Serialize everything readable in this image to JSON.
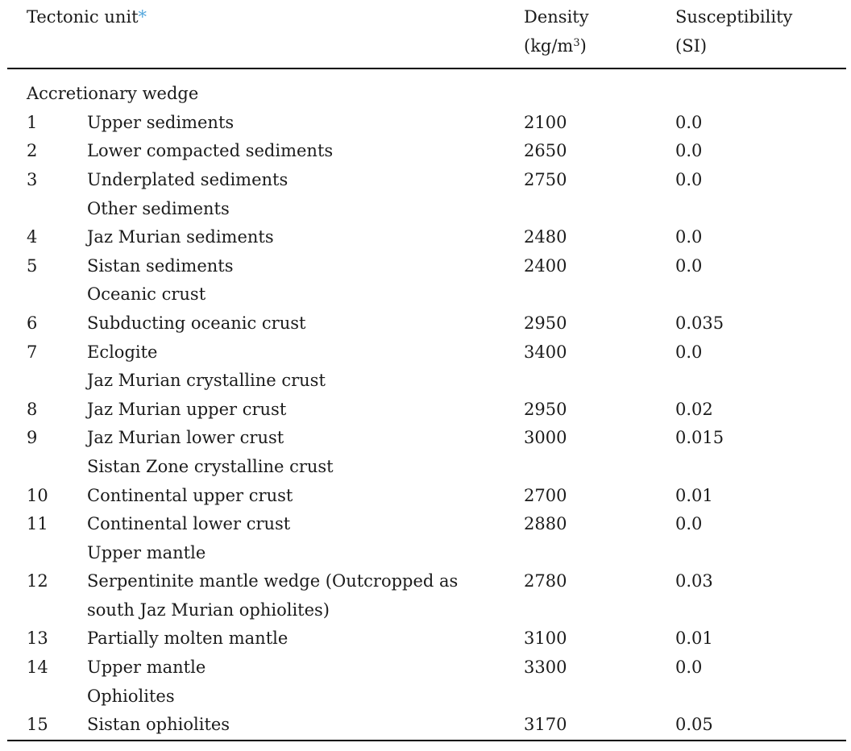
{
  "page": {
    "background": "#ffffff",
    "text_color": "#1b1b1b",
    "rule_color": "#000000",
    "footnote_link_color": "#54a7dc"
  },
  "header": {
    "tectonic_unit": "Tectonic unit",
    "tectonic_unit_note": "*",
    "density_label": "Density",
    "density_unit_prefix": "(kg/m",
    "density_unit_sup": "3",
    "density_unit_suffix": ")",
    "susceptibility_label": "Susceptibility",
    "susceptibility_unit": "(SI)"
  },
  "rows": [
    {
      "type": "group",
      "indent": false,
      "label": "Accretionary wedge"
    },
    {
      "type": "item",
      "num": "1",
      "name": "Upper sediments",
      "density": "2100",
      "susceptibility": "0.0"
    },
    {
      "type": "item",
      "num": "2",
      "name": "Lower compacted sediments",
      "density": "2650",
      "susceptibility": "0.0"
    },
    {
      "type": "item",
      "num": "3",
      "name": "Underplated sediments",
      "density": "2750",
      "susceptibility": "0.0"
    },
    {
      "type": "group",
      "indent": true,
      "label": "Other sediments"
    },
    {
      "type": "item",
      "num": "4",
      "name": "Jaz Murian sediments",
      "density": "2480",
      "susceptibility": "0.0"
    },
    {
      "type": "item",
      "num": "5",
      "name": "Sistan sediments",
      "density": "2400",
      "susceptibility": "0.0"
    },
    {
      "type": "group",
      "indent": true,
      "label": "Oceanic crust"
    },
    {
      "type": "item",
      "num": "6",
      "name": "Subducting oceanic crust",
      "density": "2950",
      "susceptibility": "0.035"
    },
    {
      "type": "item",
      "num": "7",
      "name": "Eclogite",
      "density": "3400",
      "susceptibility": "0.0"
    },
    {
      "type": "group",
      "indent": true,
      "label": "Jaz Murian crystalline crust"
    },
    {
      "type": "item",
      "num": "8",
      "name": "Jaz Murian upper crust",
      "density": "2950",
      "susceptibility": "0.02"
    },
    {
      "type": "item",
      "num": "9",
      "name": "Jaz Murian lower crust",
      "density": "3000",
      "susceptibility": "0.015"
    },
    {
      "type": "group",
      "indent": true,
      "label": "Sistan Zone crystalline crust"
    },
    {
      "type": "item",
      "num": "10",
      "name": "Continental upper crust",
      "density": "2700",
      "susceptibility": "0.01"
    },
    {
      "type": "item",
      "num": "11",
      "name": "Continental lower crust",
      "density": "2880",
      "susceptibility": "0.0"
    },
    {
      "type": "group",
      "indent": true,
      "label": "Upper mantle"
    },
    {
      "type": "item",
      "num": "12",
      "name": "Serpentinite mantle wedge (Outcropped as south Jaz Murian ophiolites)",
      "density": "2780",
      "susceptibility": "0.03"
    },
    {
      "type": "item",
      "num": "13",
      "name": "Partially molten mantle",
      "density": "3100",
      "susceptibility": "0.01"
    },
    {
      "type": "item",
      "num": "14",
      "name": "Upper mantle",
      "density": "3300",
      "susceptibility": "0.0"
    },
    {
      "type": "group",
      "indent": true,
      "label": "Ophiolites"
    },
    {
      "type": "item",
      "num": "15",
      "name": "Sistan ophiolites",
      "density": "3170",
      "susceptibility": "0.05"
    }
  ]
}
